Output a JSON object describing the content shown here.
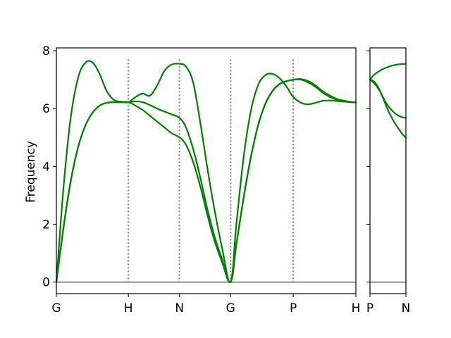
{
  "chart_data": [
    {
      "type": "line",
      "ylabel": "Frequency",
      "ylim": [
        -0.4,
        8.1
      ],
      "yticks": [
        "0",
        "2",
        "4",
        "6",
        "8"
      ],
      "ytick_values": [
        0,
        2,
        4,
        6,
        8
      ],
      "xticks": [
        "G",
        "H",
        "N",
        "G",
        "P",
        "H"
      ],
      "xtick_values": [
        0,
        1.0,
        1.71,
        2.42,
        3.29,
        4.16
      ],
      "xlim": [
        0,
        4.16
      ],
      "vlines_at": [
        1.0,
        1.71,
        2.42,
        3.29
      ],
      "zero_line": true,
      "line_color": "#008000",
      "vline_color": "#808080",
      "series": [
        {
          "x": [
            0,
            0.1,
            0.2,
            0.3,
            0.4,
            0.5,
            0.6,
            0.7,
            0.8,
            0.9,
            1.0,
            1.1,
            1.2,
            1.3,
            1.4,
            1.5,
            1.6,
            1.71,
            1.8,
            1.9,
            2.0,
            2.1,
            2.2,
            2.3,
            2.42,
            2.5,
            2.6,
            2.7,
            2.8,
            2.9,
            3.0,
            3.1,
            3.2,
            3.29,
            3.4,
            3.5,
            3.6,
            3.7,
            3.8,
            3.9,
            4.0,
            4.1,
            4.16
          ],
          "values": [
            0,
            1.9,
            3.5,
            4.65,
            5.4,
            5.85,
            6.1,
            6.2,
            6.22,
            6.22,
            6.22,
            6.1,
            5.95,
            5.75,
            5.55,
            5.35,
            5.15,
            5.0,
            4.75,
            4.15,
            3.3,
            2.3,
            1.4,
            0.7,
            0,
            1.3,
            2.9,
            4.3,
            5.4,
            6.15,
            6.6,
            6.85,
            6.95,
            7.0,
            7.0,
            6.9,
            6.75,
            6.55,
            6.4,
            6.3,
            6.25,
            6.22,
            6.22
          ]
        },
        {
          "x": [
            0,
            0.1,
            0.2,
            0.3,
            0.4,
            0.5,
            0.6,
            0.7,
            0.8,
            0.9,
            1.0,
            1.1,
            1.2,
            1.3,
            1.4,
            1.5,
            1.6,
            1.71,
            1.8,
            1.9,
            2.0,
            2.1,
            2.2,
            2.3,
            2.42,
            2.5,
            2.6,
            2.7,
            2.8,
            2.9,
            3.0,
            3.1,
            3.2,
            3.29,
            3.4,
            3.5,
            3.6,
            3.7,
            3.8,
            3.9,
            4.0,
            4.1,
            4.16
          ],
          "values": [
            0,
            1.9,
            3.5,
            4.65,
            5.4,
            5.85,
            6.1,
            6.2,
            6.22,
            6.22,
            6.22,
            6.25,
            6.22,
            6.12,
            6.0,
            5.9,
            5.8,
            5.68,
            5.35,
            4.6,
            3.6,
            2.5,
            1.55,
            0.8,
            0,
            1.3,
            2.9,
            4.3,
            5.4,
            6.15,
            6.6,
            6.85,
            6.95,
            7.0,
            7.02,
            6.95,
            6.8,
            6.6,
            6.45,
            6.33,
            6.27,
            6.23,
            6.22
          ]
        },
        {
          "x": [
            0,
            0.1,
            0.2,
            0.3,
            0.4,
            0.5,
            0.6,
            0.7,
            0.8,
            0.9,
            1.0,
            1.1,
            1.2,
            1.3,
            1.4,
            1.5,
            1.6,
            1.71,
            1.8,
            1.9,
            2.0,
            2.1,
            2.2,
            2.3,
            2.42,
            2.5,
            2.6,
            2.7,
            2.8,
            2.9,
            3.0,
            3.1,
            3.2,
            3.29,
            3.4,
            3.5,
            3.6,
            3.7,
            3.8,
            3.9,
            4.0,
            4.1,
            4.16
          ],
          "values": [
            0,
            3.3,
            5.7,
            7.05,
            7.58,
            7.6,
            7.2,
            6.6,
            6.3,
            6.24,
            6.22,
            6.4,
            6.52,
            6.45,
            6.8,
            7.3,
            7.52,
            7.55,
            7.45,
            6.9,
            5.5,
            3.9,
            2.45,
            1.2,
            0,
            2.0,
            4.3,
            5.9,
            6.8,
            7.15,
            7.2,
            7.05,
            6.75,
            6.4,
            6.2,
            6.15,
            6.2,
            6.27,
            6.28,
            6.26,
            6.24,
            6.22,
            6.22
          ]
        }
      ]
    },
    {
      "type": "line",
      "ylim": [
        -0.4,
        8.1
      ],
      "xticks": [
        "P",
        "N"
      ],
      "xtick_values": [
        0,
        1
      ],
      "xlim": [
        0,
        1
      ],
      "zero_line": true,
      "line_color": "#008000",
      "series": [
        {
          "x": [
            0,
            0.1,
            0.2,
            0.3,
            0.4,
            0.5,
            0.6,
            0.7,
            0.8,
            0.9,
            1.0
          ],
          "values": [
            7.0,
            6.95,
            6.8,
            6.55,
            6.25,
            5.95,
            5.7,
            5.48,
            5.3,
            5.12,
            5.0
          ]
        },
        {
          "x": [
            0,
            0.1,
            0.2,
            0.3,
            0.4,
            0.5,
            0.6,
            0.7,
            0.8,
            0.9,
            1.0
          ],
          "values": [
            7.0,
            6.9,
            6.75,
            6.55,
            6.3,
            6.1,
            5.95,
            5.83,
            5.75,
            5.7,
            5.68
          ]
        },
        {
          "x": [
            0,
            0.1,
            0.2,
            0.3,
            0.4,
            0.5,
            0.6,
            0.7,
            0.8,
            0.9,
            1.0
          ],
          "values": [
            7.0,
            7.15,
            7.25,
            7.33,
            7.39,
            7.44,
            7.48,
            7.51,
            7.53,
            7.54,
            7.55
          ]
        }
      ]
    }
  ]
}
